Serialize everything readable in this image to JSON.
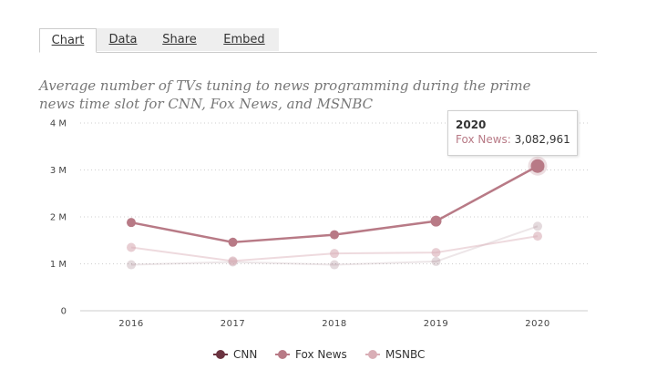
{
  "tabs": [
    {
      "label": "Chart"
    },
    {
      "label": "Data"
    },
    {
      "label": "Share"
    },
    {
      "label": "Embed"
    }
  ],
  "subtitle": "Average number of TVs tuning to news programming during the prime news time slot for CNN, Fox News, and MSNBC",
  "tooltip": {
    "title": "2020",
    "series": "Fox News:",
    "value": "3,082,961"
  },
  "colors": {
    "cnn": "#6b3340",
    "fox": "#b87a86",
    "msnbc": "#d9aeb6"
  },
  "chart_data": {
    "type": "line",
    "categories": [
      "2016",
      "2017",
      "2018",
      "2019",
      "2020"
    ],
    "ylim": [
      0,
      4000000
    ],
    "yticks": [
      {
        "value": 0,
        "label": "0"
      },
      {
        "value": 1000000,
        "label": "1 M"
      },
      {
        "value": 2000000,
        "label": "2 M"
      },
      {
        "value": 3000000,
        "label": "3 M"
      },
      {
        "value": 4000000,
        "label": "4 M"
      }
    ],
    "series": [
      {
        "name": "CNN",
        "key": "cnn",
        "values": [
          980000,
          1040000,
          980000,
          1050000,
          1800000
        ]
      },
      {
        "name": "Fox News",
        "key": "fox",
        "values": [
          1880000,
          1460000,
          1620000,
          1910000,
          3082961
        ]
      },
      {
        "name": "MSNBC",
        "key": "msnbc",
        "values": [
          1350000,
          1060000,
          1220000,
          1240000,
          1590000
        ]
      }
    ],
    "legend_position": "bottom-center",
    "highlighted": {
      "series": "Fox News",
      "category": "2020"
    }
  }
}
